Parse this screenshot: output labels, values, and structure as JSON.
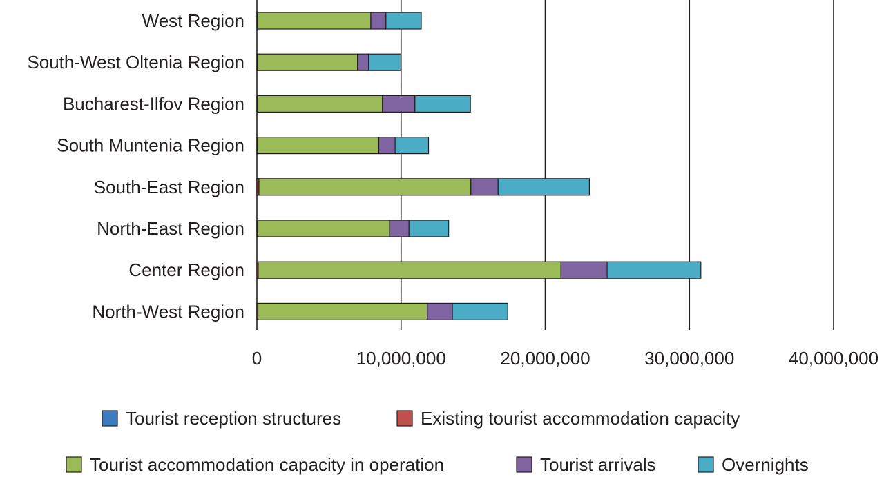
{
  "chart_data": {
    "type": "bar",
    "orientation": "horizontal",
    "stacked": true,
    "categories": [
      "West Region",
      "South-West Oltenia Region",
      "Bucharest-Ilfov Region",
      "South Muntenia Region",
      "South-East Region",
      "North-East Region",
      "Center Region",
      "North-West Region"
    ],
    "series": [
      {
        "name": "Tourist reception structures",
        "color": "#3c7bc0",
        "values": [
          600,
          500,
          500,
          600,
          1400,
          1000,
          2200,
          1100
        ]
      },
      {
        "name": "Existing tourist accommodation capacity",
        "color": "#c0504d",
        "values": [
          50000,
          30000,
          40000,
          55000,
          140000,
          60000,
          90000,
          70000
        ]
      },
      {
        "name": "Tourist accommodation capacity in operation",
        "color": "#9bbb59",
        "values": [
          7850000,
          6950000,
          8670000,
          8400000,
          14700000,
          9140000,
          21000000,
          11750000
        ]
      },
      {
        "name": "Tourist arrivals",
        "color": "#8064a2",
        "values": [
          1050000,
          770000,
          2250000,
          1130000,
          1890000,
          1350000,
          3200000,
          1740000
        ]
      },
      {
        "name": "Overnights",
        "color": "#4bacc6",
        "values": [
          2450000,
          2250000,
          3850000,
          2320000,
          6330000,
          2750000,
          6500000,
          3840000
        ]
      }
    ],
    "x_ticks": [
      "0",
      "10,000,000",
      "20,000,000",
      "30,000,000",
      "40,000,000"
    ],
    "xlim": [
      0,
      40000000
    ],
    "grid": "vertical lines at major ticks",
    "legend_position": "bottom",
    "title": "",
    "xlabel": "",
    "ylabel": ""
  }
}
